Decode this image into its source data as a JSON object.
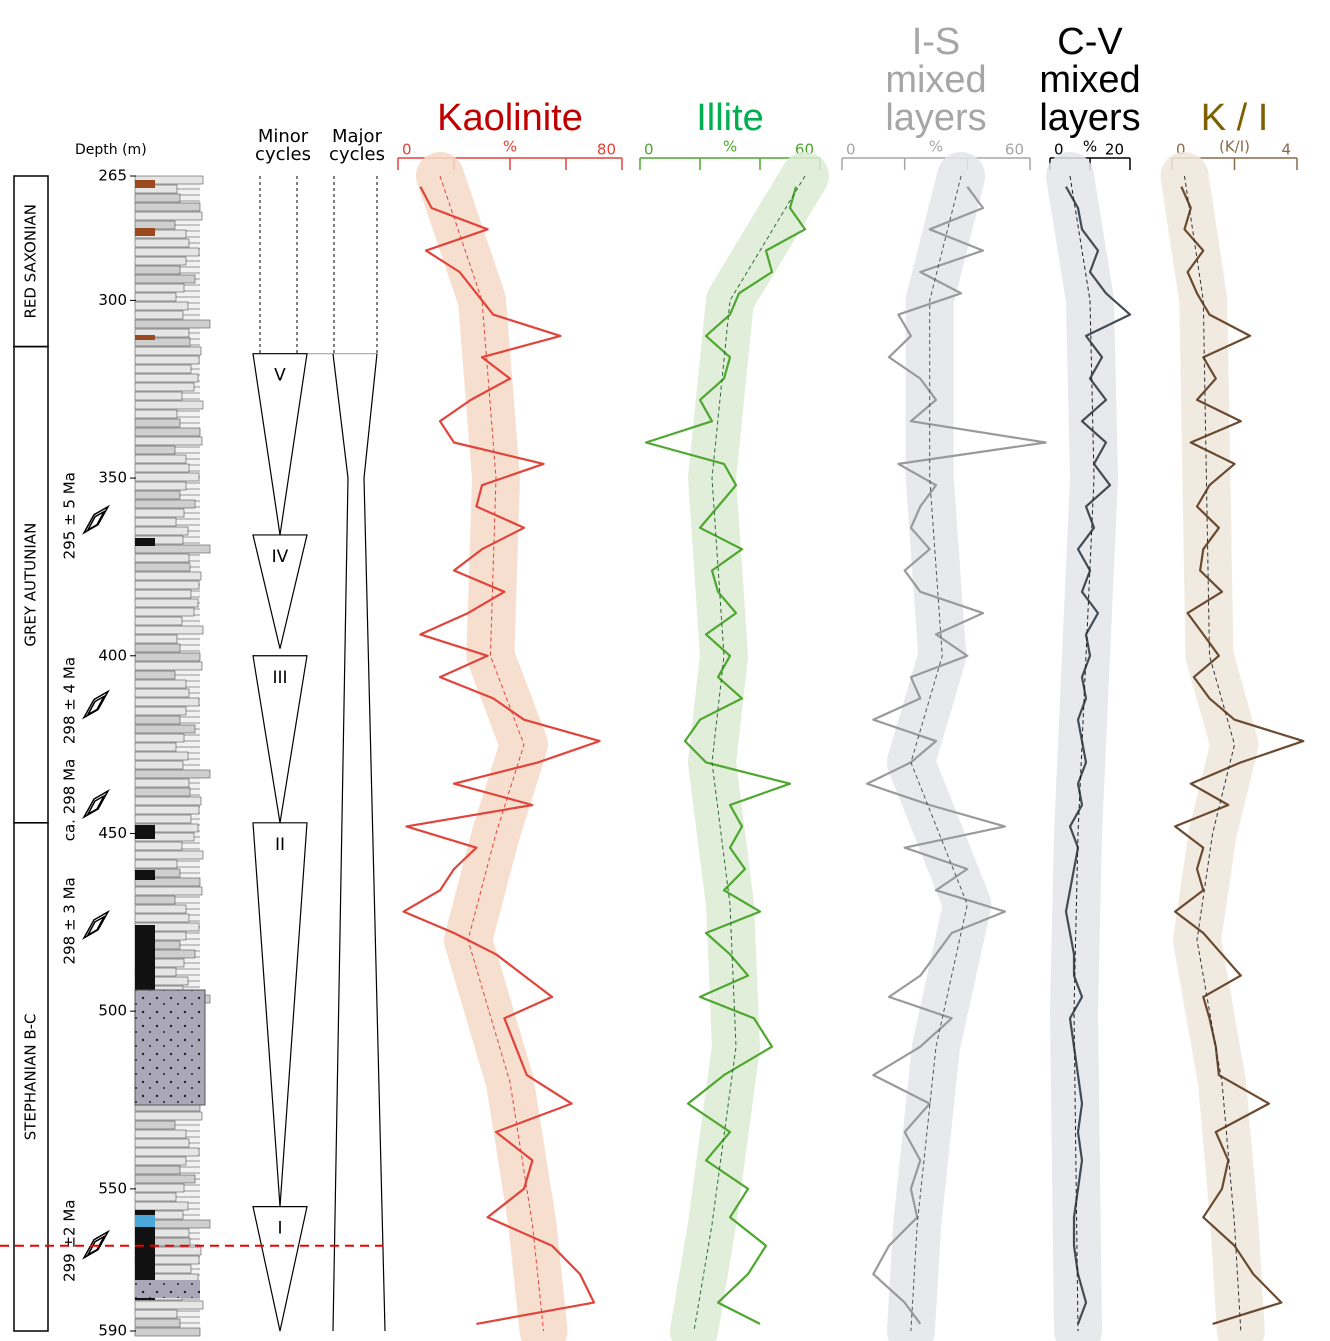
{
  "strat_log": {
    "y_label": "Depth (m)",
    "ylim": [
      265,
      590
    ],
    "yticks": [
      265,
      300,
      350,
      400,
      450,
      500,
      550,
      590
    ],
    "units": [
      {
        "name": "RED SAXONIAN",
        "top": 265,
        "bottom": 313
      },
      {
        "name": "GREY AUTUNIAN",
        "top": 313,
        "bottom": 447
      },
      {
        "name": "STEPHANIAN B-C",
        "top": 447,
        "bottom": 590
      }
    ],
    "ages": [
      {
        "label": "295 ± 5 Ma",
        "depth": 362
      },
      {
        "label": "298 ± 4 Ma",
        "depth": 414
      },
      {
        "label": "ca. 298 Ma",
        "depth": 442
      },
      {
        "label": "298 ± 3 Ma",
        "depth": 476
      },
      {
        "label": "299 ±2 Ma",
        "depth": 566
      }
    ],
    "minor_title": [
      "Minor",
      "cycles"
    ],
    "major_title": [
      "Major",
      "cycles"
    ],
    "minor_cycles": [
      {
        "label": "V",
        "top": 315,
        "bottom": 366
      },
      {
        "label": "IV",
        "top": 366,
        "bottom": 398
      },
      {
        "label": "III",
        "top": 400,
        "bottom": 447
      },
      {
        "label": "II",
        "top": 447,
        "bottom": 555
      },
      {
        "label": "I",
        "top": 555,
        "bottom": 590
      }
    ],
    "major_cycle": {
      "top": 315,
      "waist": 350,
      "bottom": 590
    },
    "marker_depth": 566
  },
  "chart_data": [
    {
      "type": "line",
      "title": [
        "Kaolinite"
      ],
      "title_color": "#c00000",
      "axis_color": "#e0443a",
      "x_label": "%",
      "xlim": [
        0,
        80
      ],
      "xticks": [
        0,
        80
      ],
      "minor_xticks": [
        20,
        40,
        60
      ],
      "series": [
        {
          "color": "#e0443a",
          "depth": [
            268,
            274,
            280,
            286,
            292,
            298,
            304,
            310,
            316,
            322,
            328,
            334,
            340,
            346,
            352,
            358,
            364,
            370,
            376,
            382,
            388,
            394,
            400,
            406,
            412,
            418,
            424,
            430,
            436,
            442,
            448,
            454,
            460,
            466,
            472,
            478,
            484,
            490,
            496,
            502,
            510,
            518,
            526,
            534,
            542,
            550,
            558,
            566,
            574,
            582,
            588
          ],
          "values": [
            8,
            12,
            32,
            10,
            22,
            28,
            34,
            58,
            30,
            40,
            26,
            15,
            20,
            52,
            30,
            28,
            45,
            30,
            20,
            38,
            25,
            8,
            32,
            15,
            34,
            45,
            72,
            50,
            20,
            48,
            3,
            28,
            20,
            15,
            2,
            20,
            35,
            45,
            55,
            38,
            42,
            46,
            62,
            35,
            48,
            45,
            32,
            55,
            65,
            70,
            28
          ]
        },
        {
          "color": "#e0443a",
          "dashed": true,
          "band_color": "#f6d9c8",
          "depth": [
            265,
            300,
            350,
            400,
            425,
            450,
            480,
            520,
            560,
            590
          ],
          "values": [
            15,
            30,
            35,
            33,
            45,
            35,
            25,
            40,
            48,
            52
          ]
        }
      ]
    },
    {
      "type": "line",
      "title": [
        "Illite"
      ],
      "title_color": "#00b050",
      "axis_color": "#4ea72e",
      "x_label": "%",
      "xlim": [
        0,
        60
      ],
      "xticks": [
        0,
        60
      ],
      "minor_xticks": [
        20,
        40
      ],
      "series": [
        {
          "color": "#4ea72e",
          "depth": [
            268,
            274,
            280,
            286,
            292,
            298,
            304,
            310,
            316,
            322,
            328,
            334,
            340,
            346,
            352,
            358,
            364,
            370,
            376,
            382,
            388,
            394,
            400,
            406,
            412,
            418,
            424,
            430,
            436,
            442,
            448,
            454,
            460,
            466,
            472,
            478,
            484,
            490,
            496,
            502,
            510,
            518,
            526,
            534,
            542,
            550,
            558,
            566,
            574,
            582,
            588
          ],
          "values": [
            52,
            50,
            55,
            42,
            44,
            33,
            30,
            22,
            30,
            28,
            20,
            24,
            2,
            28,
            32,
            26,
            20,
            34,
            24,
            26,
            32,
            22,
            30,
            26,
            34,
            20,
            15,
            22,
            50,
            30,
            34,
            30,
            35,
            28,
            40,
            22,
            30,
            36,
            20,
            38,
            44,
            28,
            16,
            30,
            22,
            36,
            30,
            42,
            36,
            26,
            40
          ]
        },
        {
          "color": "#2e6b3a",
          "dashed": true,
          "band_color": "#dcebd2",
          "depth": [
            265,
            300,
            350,
            400,
            430,
            470,
            510,
            560,
            590
          ],
          "values": [
            55,
            30,
            24,
            28,
            24,
            30,
            32,
            24,
            18
          ]
        }
      ]
    },
    {
      "type": "line",
      "title": [
        "I-S",
        "mixed",
        "layers"
      ],
      "title_color": "#a6a6a6",
      "axis_color": "#a6a6a6",
      "x_label": "%",
      "xlim": [
        0,
        60
      ],
      "xticks": [
        0,
        60
      ],
      "minor_xticks": [
        20,
        40
      ],
      "series": [
        {
          "color": "#9a9a9a",
          "depth": [
            268,
            274,
            280,
            286,
            292,
            298,
            304,
            310,
            316,
            322,
            328,
            334,
            340,
            346,
            352,
            358,
            364,
            370,
            376,
            382,
            388,
            394,
            400,
            406,
            412,
            418,
            424,
            430,
            436,
            442,
            448,
            454,
            460,
            466,
            472,
            478,
            484,
            490,
            496,
            502,
            510,
            518,
            526,
            534,
            542,
            550,
            558,
            566,
            574,
            582,
            588
          ],
          "values": [
            40,
            45,
            28,
            45,
            25,
            38,
            18,
            22,
            15,
            25,
            30,
            22,
            65,
            18,
            30,
            25,
            22,
            28,
            20,
            25,
            45,
            30,
            40,
            22,
            25,
            10,
            30,
            22,
            8,
            28,
            52,
            20,
            40,
            30,
            52,
            35,
            30,
            25,
            15,
            35,
            25,
            10,
            28,
            20,
            25,
            22,
            24,
            15,
            10,
            20,
            25
          ]
        },
        {
          "color": "#555555",
          "dashed": true,
          "band_color": "#e3e5e9",
          "depth": [
            265,
            300,
            350,
            400,
            430,
            470,
            510,
            560,
            590
          ],
          "values": [
            38,
            28,
            28,
            32,
            22,
            40,
            30,
            24,
            22
          ]
        }
      ]
    },
    {
      "type": "line",
      "title": [
        "C-V",
        "mixed",
        "layers"
      ],
      "title_color": "#000000",
      "axis_color": "#000000",
      "x_label": "%",
      "xlim": [
        0,
        20
      ],
      "xticks": [
        0,
        20
      ],
      "minor_xticks": [
        10
      ],
      "series": [
        {
          "color": "#444c55",
          "depth": [
            268,
            274,
            280,
            286,
            292,
            298,
            304,
            310,
            316,
            322,
            328,
            334,
            340,
            346,
            352,
            358,
            364,
            370,
            376,
            382,
            388,
            394,
            400,
            406,
            412,
            418,
            424,
            430,
            436,
            442,
            448,
            454,
            460,
            466,
            472,
            478,
            484,
            490,
            496,
            502,
            510,
            518,
            526,
            534,
            542,
            550,
            558,
            566,
            574,
            582,
            588
          ],
          "values": [
            4,
            7,
            8,
            12,
            10,
            14,
            20,
            9,
            13,
            10,
            14,
            8,
            14,
            11,
            15,
            9,
            11,
            7,
            10,
            8,
            12,
            9,
            10,
            8,
            9,
            7,
            8,
            9,
            7,
            8,
            5,
            7,
            6,
            5,
            4,
            5,
            6,
            6,
            8,
            5,
            6,
            7,
            8,
            7,
            8,
            7,
            6,
            6,
            7,
            9,
            7
          ]
        },
        {
          "color": "#222222",
          "dashed": true,
          "band_color": "#e3e5e9",
          "depth": [
            265,
            300,
            350,
            400,
            450,
            500,
            590
          ],
          "values": [
            5,
            10,
            11,
            9,
            7,
            6,
            7
          ]
        }
      ]
    },
    {
      "type": "line",
      "title": [
        "K / I"
      ],
      "title_color": "#7f6000",
      "axis_color": "#8a6a4a",
      "x_label": "(K/I)",
      "xlim": [
        0,
        4
      ],
      "xticks": [
        0,
        4
      ],
      "minor_xticks": [
        2
      ],
      "series": [
        {
          "color": "#6b4a2f",
          "depth": [
            268,
            274,
            280,
            286,
            292,
            298,
            304,
            310,
            316,
            322,
            328,
            334,
            340,
            346,
            352,
            358,
            364,
            370,
            376,
            382,
            388,
            394,
            400,
            406,
            412,
            418,
            424,
            430,
            436,
            442,
            448,
            454,
            460,
            466,
            472,
            478,
            484,
            490,
            496,
            502,
            510,
            518,
            526,
            534,
            542,
            550,
            558,
            566,
            574,
            582,
            588
          ],
          "values": [
            0.3,
            0.6,
            0.4,
            1.0,
            0.5,
            0.8,
            1.2,
            2.5,
            1.0,
            1.4,
            0.8,
            2.2,
            0.6,
            2.0,
            1.2,
            0.8,
            1.5,
            1.0,
            0.9,
            1.6,
            0.5,
            1.0,
            1.5,
            0.7,
            1.2,
            2.0,
            4.2,
            2.2,
            0.6,
            1.8,
            0.1,
            1.0,
            0.8,
            1.0,
            0.1,
            1.0,
            1.6,
            2.2,
            1.0,
            1.2,
            1.4,
            1.5,
            3.1,
            1.4,
            1.8,
            1.6,
            1.0,
            2.0,
            2.6,
            3.5,
            1.3
          ]
        },
        {
          "color": "#333333",
          "dashed": true,
          "band_color": "#efe6dc",
          "depth": [
            265,
            300,
            350,
            400,
            425,
            450,
            480,
            520,
            560,
            590
          ],
          "values": [
            0.4,
            1.0,
            1.1,
            1.2,
            2.0,
            1.3,
            0.8,
            1.6,
            2.0,
            2.2
          ]
        }
      ]
    }
  ]
}
